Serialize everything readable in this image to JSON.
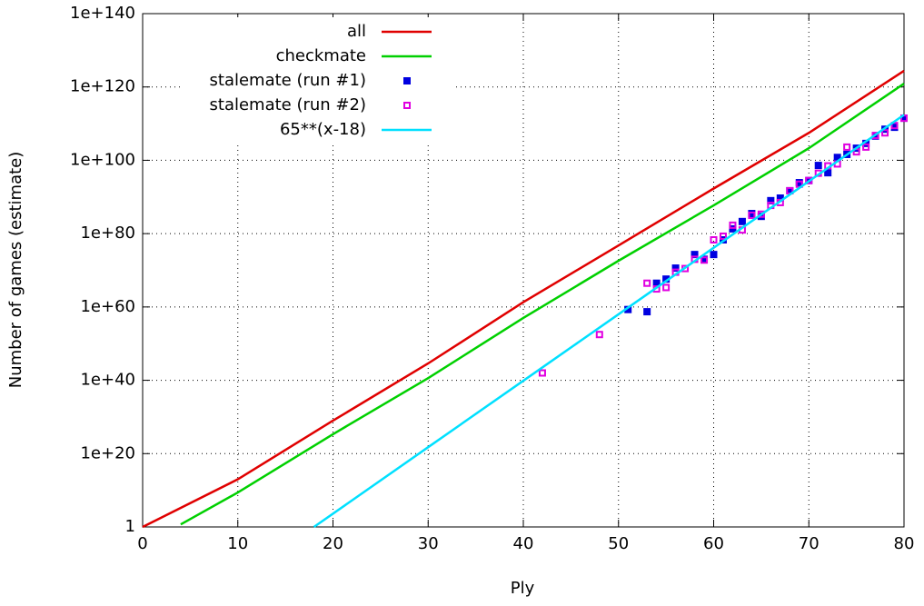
{
  "chart_data": {
    "type": "line",
    "xlabel": "Ply",
    "ylabel": "Number of games (estimate)",
    "xlim": [
      0,
      80
    ],
    "xticks": [
      0,
      10,
      20,
      30,
      40,
      50,
      60,
      70,
      80
    ],
    "ylim": [
      1,
      1e+140
    ],
    "yscale": "log",
    "yticks": [
      1,
      {
        "value": 1e+20,
        "label": "1e+20"
      },
      {
        "value": 1e+40,
        "label": "1e+40"
      },
      {
        "value": 1e+60,
        "label": "1e+60"
      },
      {
        "value": 1e+80,
        "label": "1e+80"
      },
      {
        "value": 1e+100,
        "label": "1e+100"
      },
      {
        "value": 1e+120,
        "label": "1e+120"
      },
      {
        "value": 1e+140,
        "label": "1e+140"
      }
    ],
    "grid": true,
    "legend": "top-right",
    "series": [
      {
        "name": "all",
        "color": "#e00000",
        "x": [
          0,
          10,
          20,
          30,
          40,
          50,
          60,
          70,
          80
        ],
        "values": [
          1,
          10000000000000.0,
          1e+29,
          4e+44,
          2e+61,
          6e+76,
          2e+92,
          3e+107,
          2.5e+124
        ]
      },
      {
        "name": "checkmate",
        "color": "#00d000",
        "x": [
          4,
          10,
          20,
          30,
          40,
          50,
          60,
          70,
          80
        ],
        "values": [
          5,
          2500000000.0,
          2e+25,
          4e+40,
          1e+57,
          4e+72,
          5e+87,
          2e+103,
          8e+120
        ]
      },
      {
        "name": "stalemate (run #1)",
        "color": "#0000e0",
        "marker": "filled-square",
        "x": [
          51,
          53,
          54,
          55,
          56,
          58,
          59,
          60,
          61,
          62,
          63,
          64,
          65,
          66,
          67,
          68,
          69,
          70,
          71,
          72,
          73,
          74,
          75,
          76,
          77,
          78,
          79,
          80
        ],
        "values": [
          2e+59,
          5e+58,
          3e+66,
          4e+67,
          4e+70,
          2e+74,
          1e+73,
          2e+74,
          2e+78,
          2e+81,
          2e+83,
          3e+85,
          5e+84,
          1e+89,
          5e+89,
          5e+91,
          8e+93,
          3e+94,
          4e+98,
          4e+96,
          6e+100,
          4e+101,
          2e+103,
          4e+104,
          4e+106,
          3e+108,
          1e+109,
          3e+111
        ]
      },
      {
        "name": "stalemate (run #2)",
        "color": "#e000e0",
        "marker": "open-square",
        "x": [
          42,
          48,
          53,
          54,
          55,
          56,
          57,
          58,
          59,
          60,
          61,
          62,
          63,
          64,
          65,
          66,
          67,
          68,
          69,
          70,
          71,
          72,
          73,
          74,
          75,
          76,
          77,
          78,
          79,
          80
        ],
        "values": [
          1e+42,
          3e+52,
          3e+66,
          8e+64,
          2e+65,
          3e+69,
          3e+70,
          1e+73,
          6e+72,
          2e+78,
          2e+79,
          2e+82,
          1e+81,
          1e+85,
          2e+85,
          5e+87,
          3e+88,
          5e+91,
          3e+93,
          3e+94,
          3e+96,
          3e+98,
          1e+99,
          4e+103,
          2e+102,
          4e+103,
          6e+106,
          3e+107,
          3e+109,
          3e+111
        ]
      },
      {
        "name": "65**(x-18)",
        "color": "#00e0ff",
        "x": [
          18,
          30,
          40,
          50,
          60,
          70,
          80
        ],
        "values": [
          1,
          5.7e+21,
          7.6e+39,
          1e+58,
          1.4e+76,
          1.9e+94,
          2.5e+112
        ]
      }
    ]
  }
}
